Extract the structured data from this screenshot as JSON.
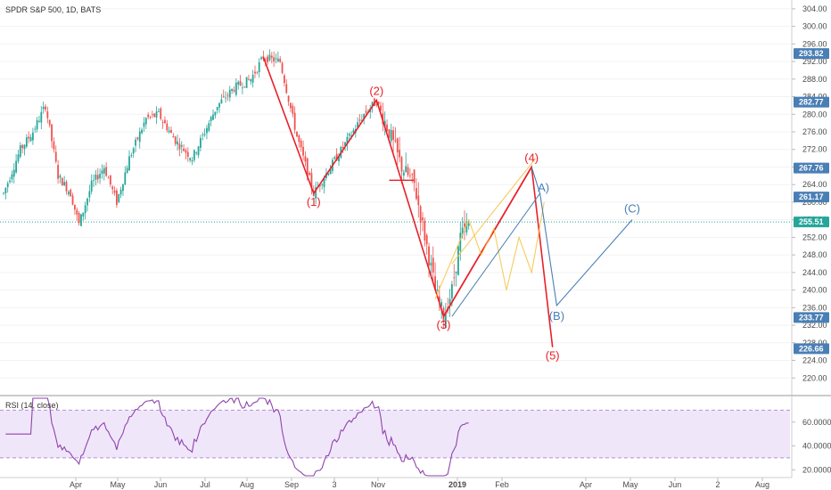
{
  "chart_data": {
    "type": "candlestick",
    "title": "SPDR S&P 500, 1D, BATS",
    "price_axis": {
      "ylim": [
        216,
        306
      ],
      "ticks": [
        "304.00",
        "300.00",
        "296.00",
        "292.00",
        "288.00",
        "284.00",
        "280.00",
        "276.00",
        "272.00",
        "268.00",
        "264.00",
        "260.00",
        "256.00",
        "252.00",
        "248.00",
        "244.00",
        "240.00",
        "236.00",
        "232.00",
        "228.00",
        "224.00",
        "220.00"
      ]
    },
    "price_badges": [
      {
        "label": "293.82",
        "value": 293.82,
        "color": "#4a7fb5"
      },
      {
        "label": "282.77",
        "value": 282.77,
        "color": "#4a7fb5"
      },
      {
        "label": "267.76",
        "value": 267.76,
        "color": "#4a7fb5"
      },
      {
        "label": "261.17",
        "value": 261.17,
        "color": "#4a7fb5"
      },
      {
        "label": "255.51",
        "value": 255.51,
        "color": "#26a69a"
      },
      {
        "label": "233.77",
        "value": 233.77,
        "color": "#4a7fb5"
      },
      {
        "label": "226.66",
        "value": 226.66,
        "color": "#4a7fb5"
      }
    ],
    "current_price_line": 255.51,
    "x_labels": [
      "Apr",
      "May",
      "Jun",
      "Jul",
      "Aug",
      "Sep",
      "3",
      "Nov",
      "2019",
      "Feb",
      "Apr",
      "May",
      "Jun",
      "2",
      "Aug"
    ],
    "waves_red": [
      {
        "label": "(1)",
        "date": 148,
        "price": 262.0
      },
      {
        "label": "(2)",
        "date": 178,
        "price": 283.2
      },
      {
        "label": "(3)",
        "date": 210,
        "price": 234.0
      },
      {
        "label": "(4)",
        "date": 252,
        "price": 268.0
      },
      {
        "label": "(5)",
        "date": 262,
        "price": 227.0
      }
    ],
    "wave_start": {
      "date": 124,
      "price": 293.0
    },
    "waves_blue": [
      {
        "label": "A)",
        "date": 256,
        "price": 262.0
      },
      {
        "label": "(B)",
        "date": 264,
        "price": 236.5
      },
      {
        "label": "(C)",
        "date": 300,
        "price": 256.0
      }
    ],
    "colors": {
      "up": "#26a69a",
      "down": "#ef5350",
      "wave": "#e8202a",
      "abc": "#4a7fb5",
      "projection": "#f5c242",
      "rsi": "#8e44ad"
    },
    "rsi": {
      "legend": "RSI (14, close)",
      "ylim": [
        15,
        80
      ],
      "ticks": [
        "60.0000",
        "40.0000",
        "20.0000"
      ],
      "bands": [
        30,
        70
      ]
    }
  }
}
